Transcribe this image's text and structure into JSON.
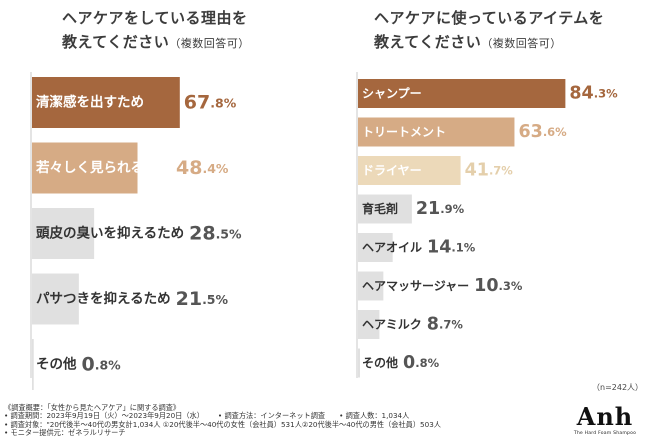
{
  "chart_data": [
    {
      "type": "bar",
      "orientation": "horizontal",
      "title": "ヘアケアをしている理由を",
      "title_line2": "教えてください",
      "subtitle": "（複数回答可）",
      "categories": [
        "清潔感を出すため",
        "若々しく見られるため",
        "頭皮の臭いを抑えるため",
        "パサつきを抑えるため",
        "その他"
      ],
      "values": [
        67.8,
        48.4,
        28.5,
        21.5,
        0.8
      ],
      "value_labels": [
        {
          "int": "67",
          "dec": ".8%"
        },
        {
          "int": "48",
          "dec": ".4%"
        },
        {
          "int": "28",
          "dec": ".5%"
        },
        {
          "int": "21",
          "dec": ".5%"
        },
        {
          "int": "0",
          "dec": ".8%"
        }
      ],
      "unit": "%",
      "xlim": [
        0,
        100
      ],
      "colors": [
        "#a5673e",
        "#d6ab85",
        "#e0e0e0",
        "#e0e0e0",
        "#e0e0e0"
      ],
      "value_colors": [
        "#a5673e",
        "#d6ab85",
        "#555555",
        "#555555",
        "#555555"
      ],
      "label_colors": [
        "#ffffff",
        "#ffffff",
        "#333333",
        "#333333",
        "#333333"
      ]
    },
    {
      "type": "bar",
      "orientation": "horizontal",
      "title": "ヘアケアに使っているアイテムを",
      "title_line2": "教えてください",
      "subtitle": "（複数回答可）",
      "categories": [
        "シャンプー",
        "トリートメント",
        "ドライヤー",
        "育毛剤",
        "ヘアオイル",
        "ヘアマッサージャー",
        "ヘアミルク",
        "その他"
      ],
      "values": [
        84.3,
        63.6,
        41.7,
        21.9,
        14.1,
        10.3,
        8.7,
        0.8
      ],
      "value_labels": [
        {
          "int": "84",
          "dec": ".3%"
        },
        {
          "int": "63",
          "dec": ".6%"
        },
        {
          "int": "41",
          "dec": ".7%"
        },
        {
          "int": "21",
          "dec": ".9%"
        },
        {
          "int": "14",
          "dec": ".1%"
        },
        {
          "int": "10",
          "dec": ".3%"
        },
        {
          "int": "8",
          "dec": ".7%"
        },
        {
          "int": "0",
          "dec": ".8%"
        }
      ],
      "unit": "%",
      "xlim": [
        0,
        100
      ],
      "colors": [
        "#a5673e",
        "#d6ab85",
        "#ecd9b9",
        "#e0e0e0",
        "#e0e0e0",
        "#e0e0e0",
        "#e0e0e0",
        "#e0e0e0"
      ],
      "value_colors": [
        "#a5673e",
        "#d6ab85",
        "#e4cfab",
        "#555555",
        "#555555",
        "#555555",
        "#555555",
        "#555555"
      ],
      "label_colors": [
        "#ffffff",
        "#ffffff",
        "#ffffff",
        "#333333",
        "#333333",
        "#333333",
        "#333333",
        "#333333"
      ]
    }
  ],
  "sample_size": "（n=242人）",
  "footnotes": {
    "header": "《調査概要：「女性から見たヘアケア」に関する調査》",
    "period": "• 調査期間：2023年9月19日（火）〜2023年9月20日（水）",
    "method": "• 調査方法：インターネット調査",
    "count": "• 調査人数：1,034人",
    "target": "• 調査対象：\"20代後半〜40代の男女計1,034人 ①20代後半〜40代の女性（会社員）531人②20代後半〜40代の男性（会社員）503人",
    "provider": "• モニター提供元：ゼネラルリサーチ"
  },
  "logo": {
    "mark": "Anh",
    "tagline": "The Hard Foam Shampoo"
  }
}
